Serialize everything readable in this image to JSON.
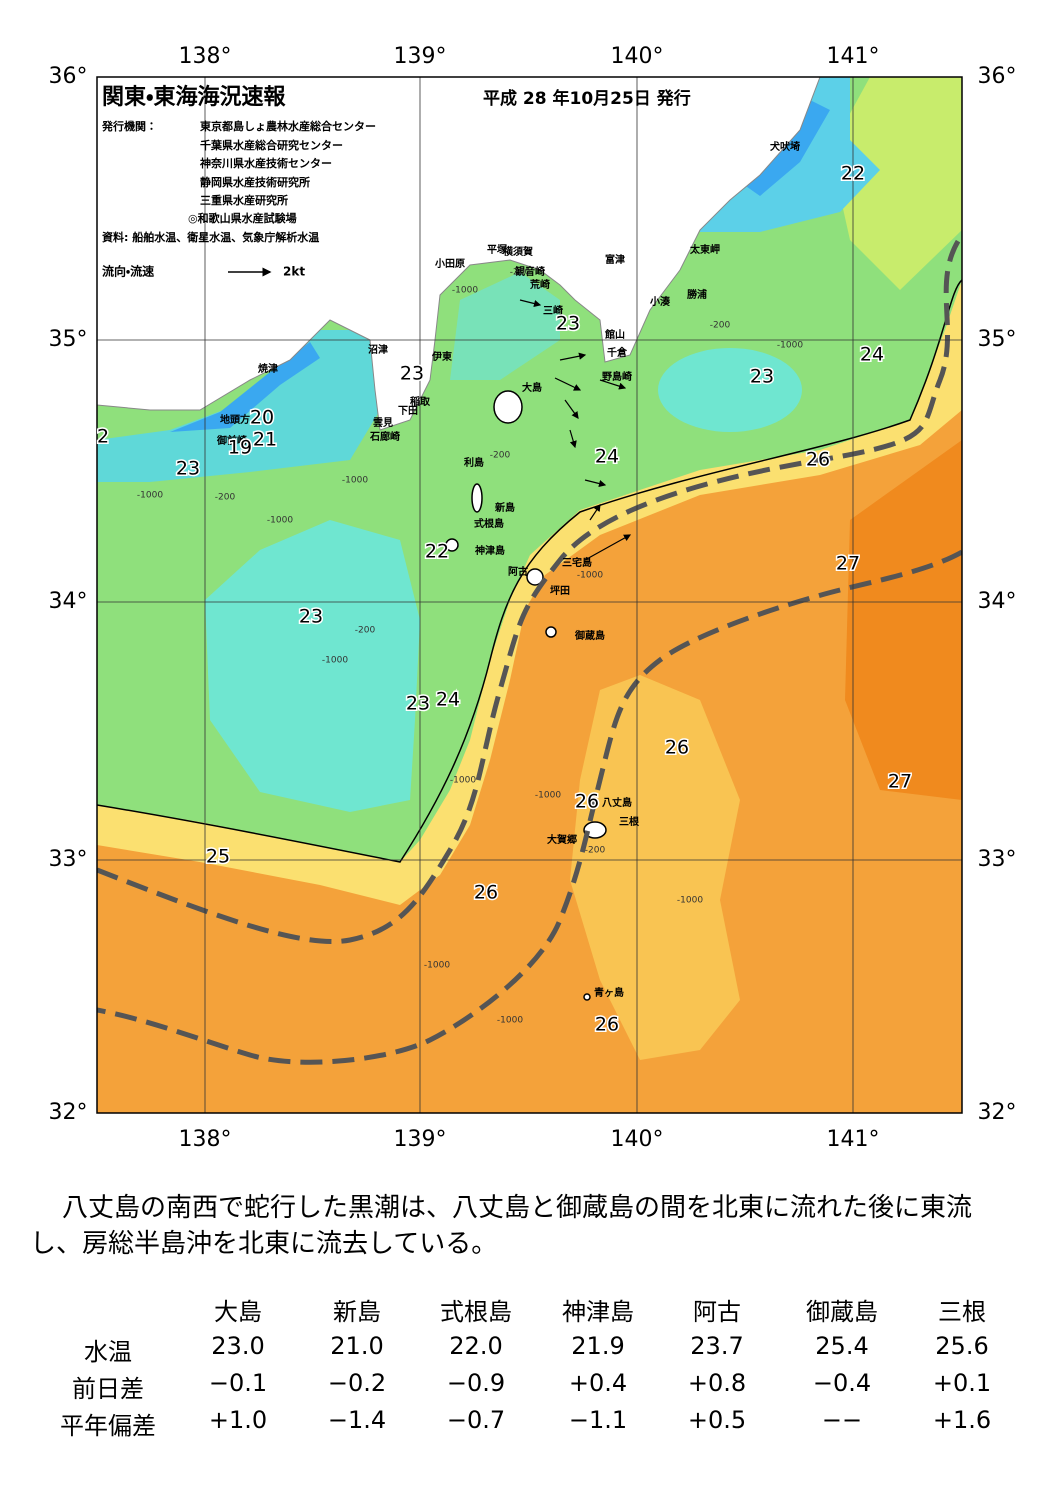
{
  "header": {
    "title": "関東・東海海況速報",
    "date": "平成 28 年10月25日 発行",
    "issuer_label": "発行機関：",
    "issuers": [
      "東京都島しょ農林水産総合センター",
      "千葉県水産総合研究センター",
      "神奈川県水産技術センター",
      "静岡県水産技術研究所",
      "三重県水産研究所",
      "◎和歌山県水産試験場"
    ],
    "source": "資料: 船舶水温、衛星水温、気象庁解析水温",
    "legend_label": "流向・流速",
    "legend_speed": "2kt"
  },
  "map": {
    "lon_labels": [
      "138°",
      "139°",
      "140°",
      "141°"
    ],
    "lat_labels": [
      "36°",
      "35°",
      "34°",
      "33°",
      "32°"
    ],
    "places": [
      "犬吠埼",
      "太東岬",
      "勝浦",
      "小湊",
      "富津",
      "横須賀",
      "平塚",
      "観音崎",
      "荒崎",
      "三崎",
      "小田原",
      "館山",
      "千倉",
      "野島崎",
      "沼津",
      "伊東",
      "焼津",
      "稲取",
      "下田",
      "雲見",
      "石廊崎",
      "大島",
      "地頭方",
      "御前崎",
      "利島",
      "新島",
      "式根島",
      "神津島",
      "三宅島",
      "阿古",
      "坪田",
      "御蔵島",
      "八丈島",
      "三根",
      "大賀郷",
      "青ヶ島"
    ],
    "temperature_labels": [
      22,
      23,
      24,
      23,
      23,
      20,
      21,
      19,
      2,
      23,
      24,
      26,
      22,
      27,
      23,
      23,
      24,
      26,
      27,
      26,
      25,
      26,
      26
    ],
    "depth_labels": [
      "-1000",
      "-1000",
      "-1000",
      "-1000",
      "-1000",
      "-1000",
      "-1000",
      "-1000",
      "-1000",
      "-1000",
      "-1000",
      "-1000",
      "-200",
      "-200",
      "-200",
      "-200",
      "-200",
      "-200"
    ]
  },
  "description": "八丈島の南西で蛇行した黒潮は、八丈島と御蔵島の間を北東に流れた後に東流し、房総半島沖を北東に流去している。",
  "table": {
    "columns": [
      "大島",
      "新島",
      "式根島",
      "神津島",
      "阿古",
      "御蔵島",
      "三根"
    ],
    "rows": [
      {
        "label": "水温",
        "values": [
          "23.0",
          "21.0",
          "22.0",
          "21.9",
          "23.7",
          "25.4",
          "25.6"
        ]
      },
      {
        "label": "前日差",
        "values": [
          "−0.1",
          "−0.2",
          "−0.9",
          "+0.4",
          "+0.8",
          "−0.4",
          "+0.1"
        ]
      },
      {
        "label": "平年偏差",
        "values": [
          "+1.0",
          "−1.4",
          "−0.7",
          "−1.1",
          "+0.5",
          "−−",
          "+1.6"
        ]
      }
    ]
  }
}
